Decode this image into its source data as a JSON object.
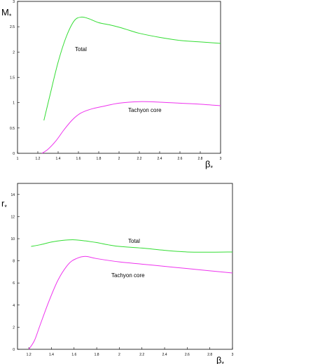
{
  "chart_data": [
    {
      "type": "line",
      "xlabel": "β*",
      "ylabel": "M*",
      "xlim": [
        1,
        3
      ],
      "ylim": [
        0,
        3
      ],
      "x_ticks": [
        "1",
        "1.2",
        "1.4",
        "1.6",
        "1.8",
        "2",
        "2.2",
        "2.4",
        "2.6",
        "2.8",
        "3"
      ],
      "y_ticks": [
        "0",
        "0.5",
        "1",
        "1.5",
        "2",
        "2.5",
        "3"
      ],
      "grid": false,
      "series": [
        {
          "name": "Total",
          "color": "#33dd33",
          "x": [
            1.26,
            1.32,
            1.4,
            1.48,
            1.56,
            1.63,
            1.7,
            1.8,
            1.9,
            2.0,
            2.1,
            2.2,
            2.4,
            2.6,
            2.8,
            3.0
          ],
          "y": [
            0.65,
            1.15,
            1.8,
            2.3,
            2.62,
            2.69,
            2.66,
            2.58,
            2.54,
            2.49,
            2.43,
            2.37,
            2.29,
            2.23,
            2.2,
            2.17
          ]
        },
        {
          "name": "Tachyon core",
          "color": "#ee33ee",
          "x": [
            1.24,
            1.3,
            1.38,
            1.46,
            1.54,
            1.62,
            1.72,
            1.85,
            2.0,
            2.2,
            2.4,
            2.6,
            2.8,
            3.0
          ],
          "y": [
            0.0,
            0.08,
            0.25,
            0.47,
            0.66,
            0.79,
            0.87,
            0.93,
            0.99,
            1.02,
            1.01,
            0.99,
            0.97,
            0.94
          ]
        }
      ]
    },
    {
      "type": "line",
      "xlabel": "β*",
      "ylabel": "r*",
      "xlim": [
        1.1,
        3
      ],
      "ylim": [
        0,
        15
      ],
      "x_ticks": [
        "1.2",
        "1.4",
        "1.6",
        "1.8",
        "2",
        "2.2",
        "2.4",
        "2.6",
        "2.8",
        "3"
      ],
      "y_ticks": [
        "0",
        "2",
        "4",
        "6",
        "8",
        "10",
        "12",
        "14"
      ],
      "grid": false,
      "series": [
        {
          "name": "Total",
          "color": "#33dd33",
          "x": [
            1.22,
            1.3,
            1.4,
            1.5,
            1.6,
            1.7,
            1.8,
            1.9,
            2.0,
            2.2,
            2.4,
            2.6,
            2.8,
            3.0
          ],
          "y": [
            9.3,
            9.45,
            9.7,
            9.85,
            9.9,
            9.8,
            9.65,
            9.45,
            9.3,
            9.15,
            8.95,
            8.8,
            8.78,
            8.8
          ]
        },
        {
          "name": "Tachyon core",
          "color": "#ee33ee",
          "x": [
            1.2,
            1.25,
            1.3,
            1.38,
            1.46,
            1.55,
            1.62,
            1.7,
            1.8,
            2.0,
            2.2,
            2.4,
            2.6,
            2.8,
            3.0
          ],
          "y": [
            0.0,
            0.8,
            2.2,
            4.4,
            6.3,
            7.7,
            8.2,
            8.4,
            8.2,
            7.9,
            7.7,
            7.5,
            7.3,
            7.1,
            6.9
          ]
        }
      ]
    }
  ],
  "annotations": [
    "Total",
    "Tachyon core",
    "Total",
    "Tachyon core"
  ]
}
